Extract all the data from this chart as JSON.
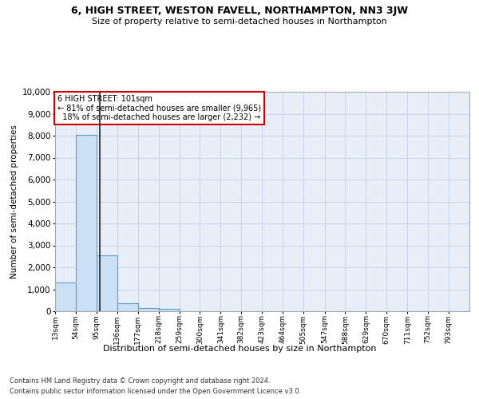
{
  "title": "6, HIGH STREET, WESTON FAVELL, NORTHAMPTON, NN3 3JW",
  "subtitle": "Size of property relative to semi-detached houses in Northampton",
  "xlabel": "Distribution of semi-detached houses by size in Northampton",
  "ylabel": "Number of semi-detached properties",
  "footer_line1": "Contains HM Land Registry data © Crown copyright and database right 2024.",
  "footer_line2": "Contains public sector information licensed under the Open Government Licence v3.0.",
  "bar_edges": [
    13,
    54,
    95,
    136,
    177,
    218,
    259,
    300,
    341,
    382,
    423,
    464,
    505,
    547,
    588,
    629,
    670,
    711,
    752,
    793,
    834
  ],
  "bar_heights": [
    1320,
    8050,
    2530,
    380,
    140,
    95,
    0,
    0,
    0,
    0,
    0,
    0,
    0,
    0,
    0,
    0,
    0,
    0,
    0,
    0
  ],
  "bar_color": "#cce0f5",
  "bar_edge_color": "#5b9bd5",
  "property_size": 101,
  "property_label": "6 HIGH STREET: 101sqm",
  "pct_smaller": 81,
  "n_smaller": 9965,
  "pct_larger": 18,
  "n_larger": 2232,
  "vline_color": "#222222",
  "annotation_box_color": "#cc0000",
  "ylim": [
    0,
    10000
  ],
  "yticks": [
    0,
    1000,
    2000,
    3000,
    4000,
    5000,
    6000,
    7000,
    8000,
    9000,
    10000
  ],
  "grid_color": "#c8d4e8",
  "plot_bg_color": "#e8eef8",
  "title_fontsize": 9,
  "subtitle_fontsize": 8,
  "ylabel_fontsize": 7.5,
  "annotation_fontsize": 7,
  "xtick_fontsize": 6.5,
  "ytick_fontsize": 7.5,
  "xlabel_fontsize": 8,
  "footer_fontsize": 6
}
